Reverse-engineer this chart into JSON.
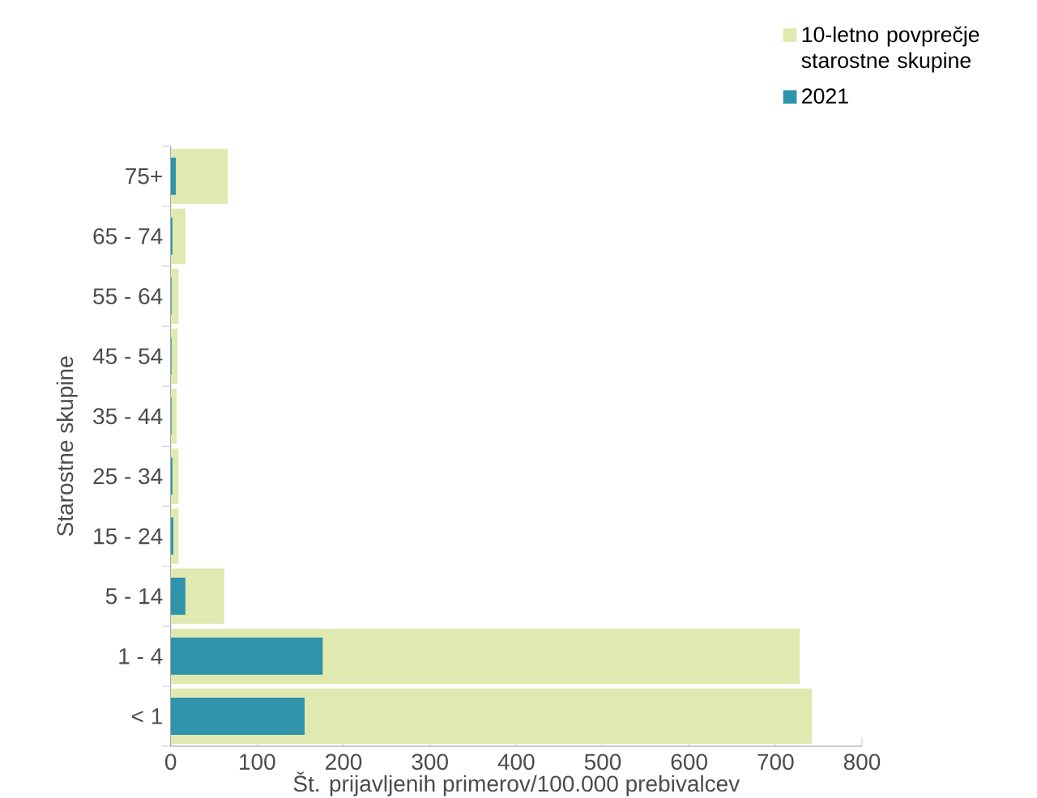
{
  "chart_data": {
    "type": "bar",
    "orientation": "horizontal",
    "xlabel": "Št. prijavljenih primerov/100.000 prebivalcev",
    "ylabel": "Starostne skupine",
    "categories": [
      "75+",
      "65 - 74",
      "55 - 64",
      "45 - 54",
      "35 - 44",
      "25 - 34",
      "15 - 24",
      "5 - 14",
      "1 - 4",
      "<  1"
    ],
    "series": [
      {
        "name": "10-letno povprečje starostne skupine",
        "color": "#dfe9b0",
        "values": [
          66,
          17,
          9,
          8,
          7,
          9,
          9,
          62,
          728,
          742
        ]
      },
      {
        "name": "2021",
        "color": "#2e93ab",
        "values": [
          6,
          2,
          1,
          1,
          1,
          2,
          3,
          17,
          176,
          155
        ]
      }
    ],
    "xlim": [
      0,
      800
    ],
    "xticks": [
      0,
      100,
      200,
      300,
      400,
      500,
      600,
      700,
      800
    ],
    "grid": false,
    "legend": "top right"
  }
}
